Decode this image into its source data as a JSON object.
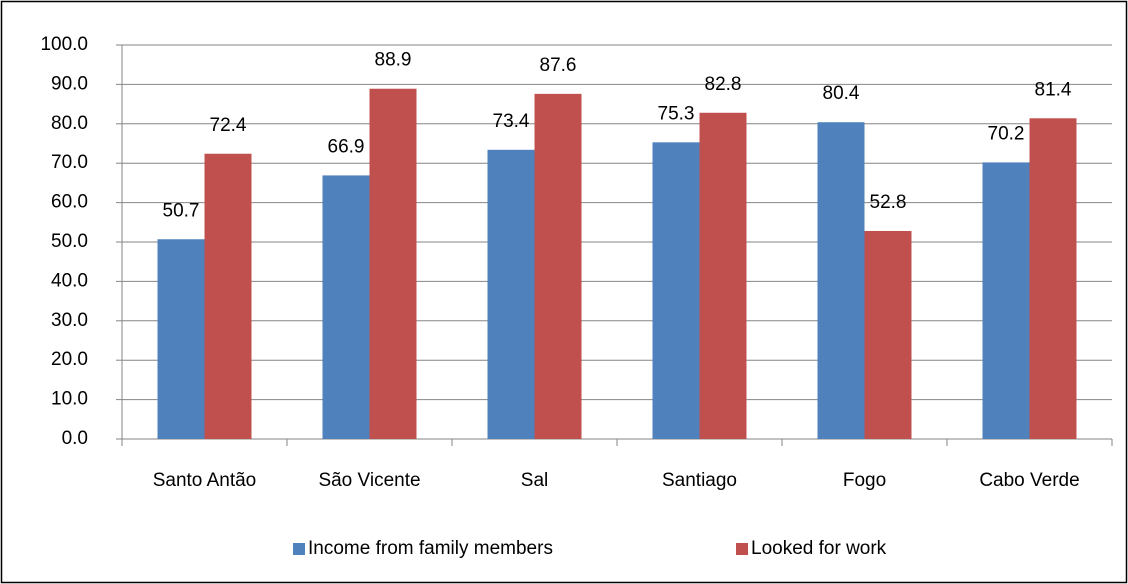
{
  "chart_data": {
    "type": "bar",
    "categories": [
      "Santo Antão",
      "São Vicente",
      "Sal",
      "Santiago",
      "Fogo",
      "Cabo Verde"
    ],
    "series": [
      {
        "name": "Income from family members",
        "color": "#4f81bd",
        "values": [
          50.7,
          66.9,
          73.4,
          75.3,
          80.4,
          70.2
        ]
      },
      {
        "name": "Looked for work",
        "color": "#c0504d",
        "values": [
          72.4,
          88.9,
          87.6,
          82.8,
          52.8,
          81.4
        ]
      }
    ],
    "ylim": [
      0,
      100
    ],
    "yticks": [
      {
        "value": 0,
        "label": "0.0"
      },
      {
        "value": 10,
        "label": "10.0"
      },
      {
        "value": 20,
        "label": "20.0"
      },
      {
        "value": 30,
        "label": "30.0"
      },
      {
        "value": 40,
        "label": "40.0"
      },
      {
        "value": 50,
        "label": "50.0"
      },
      {
        "value": 60,
        "label": "60.0"
      },
      {
        "value": 70,
        "label": "70.0"
      },
      {
        "value": 80,
        "label": "80.0"
      },
      {
        "value": 90,
        "label": "90.0"
      },
      {
        "value": 100,
        "label": "100.0"
      }
    ],
    "grid": true,
    "legend": "bottom"
  }
}
